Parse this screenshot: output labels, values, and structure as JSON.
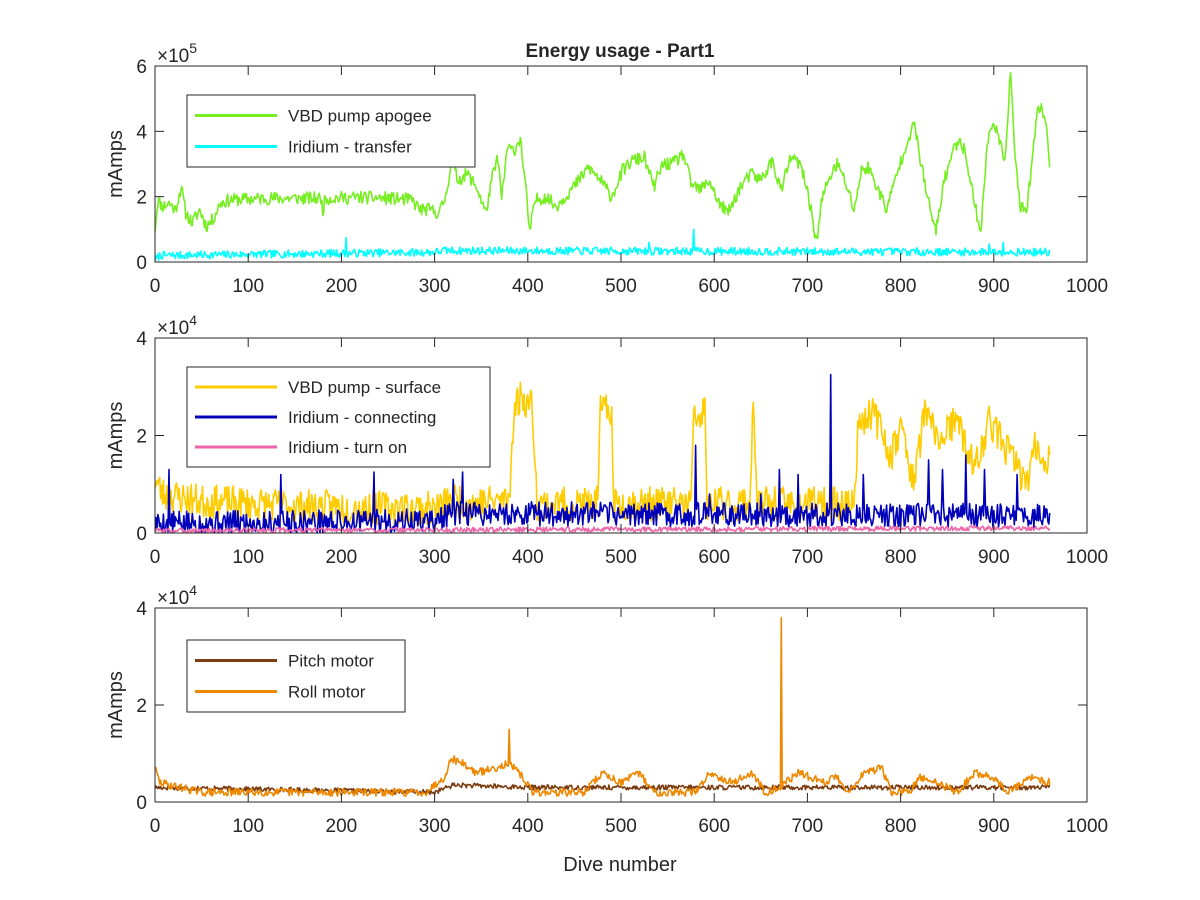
{
  "figure": {
    "title": "Energy usage - Part1",
    "xlabel": "Dive number"
  },
  "chart_data": [
    {
      "type": "line",
      "title": "Energy usage - Part1",
      "xlabel": "",
      "ylabel": "mAmps",
      "xlim": [
        0,
        1000
      ],
      "ylim": [
        0,
        6
      ],
      "y_exponent": "5",
      "xticks": [
        0,
        100,
        200,
        300,
        400,
        500,
        600,
        700,
        800,
        900,
        1000
      ],
      "yticks": [
        0,
        2,
        4,
        6
      ],
      "grid": false,
      "legend": "top-left",
      "series": [
        {
          "name": "VBD pump apogee",
          "color": "#77ee22",
          "points": [
            [
              0,
              1.0
            ],
            [
              3,
              1.9
            ],
            [
              8,
              1.7
            ],
            [
              15,
              1.8
            ],
            [
              22,
              1.6
            ],
            [
              28,
              2.3
            ],
            [
              33,
              1.5
            ],
            [
              40,
              1.2
            ],
            [
              48,
              1.6
            ],
            [
              55,
              1.1
            ],
            [
              62,
              1.3
            ],
            [
              70,
              1.8
            ],
            [
              80,
              1.9
            ],
            [
              120,
              1.95
            ],
            [
              160,
              1.95
            ],
            [
              178,
              1.95
            ],
            [
              180,
              1.6
            ],
            [
              183,
              1.95
            ],
            [
              220,
              1.98
            ],
            [
              250,
              1.95
            ],
            [
              275,
              1.9
            ],
            [
              285,
              1.6
            ],
            [
              295,
              1.6
            ],
            [
              305,
              1.5
            ],
            [
              312,
              2.0
            ],
            [
              318,
              3.1
            ],
            [
              325,
              2.5
            ],
            [
              335,
              2.7
            ],
            [
              345,
              2.3
            ],
            [
              355,
              1.5
            ],
            [
              362,
              2.6
            ],
            [
              368,
              3.2
            ],
            [
              372,
              1.9
            ],
            [
              378,
              3.5
            ],
            [
              385,
              3.4
            ],
            [
              392,
              3.8
            ],
            [
              398,
              2.2
            ],
            [
              402,
              0.9
            ],
            [
              408,
              1.9
            ],
            [
              420,
              2.0
            ],
            [
              430,
              1.7
            ],
            [
              440,
              2.0
            ],
            [
              455,
              2.5
            ],
            [
              465,
              2.9
            ],
            [
              478,
              2.5
            ],
            [
              490,
              2.0
            ],
            [
              502,
              2.8
            ],
            [
              512,
              3.1
            ],
            [
              525,
              3.2
            ],
            [
              535,
              2.3
            ],
            [
              545,
              3.0
            ],
            [
              555,
              3.0
            ],
            [
              567,
              3.3
            ],
            [
              575,
              2.4
            ],
            [
              585,
              2.2
            ],
            [
              595,
              2.5
            ],
            [
              605,
              1.8
            ],
            [
              615,
              1.5
            ],
            [
              628,
              2.3
            ],
            [
              640,
              2.7
            ],
            [
              650,
              2.5
            ],
            [
              662,
              3.1
            ],
            [
              672,
              2.2
            ],
            [
              682,
              3.2
            ],
            [
              692,
              3.0
            ],
            [
              700,
              2.2
            ],
            [
              710,
              0.6
            ],
            [
              715,
              1.8
            ],
            [
              722,
              2.5
            ],
            [
              732,
              3.0
            ],
            [
              740,
              2.5
            ],
            [
              750,
              1.6
            ],
            [
              758,
              2.8
            ],
            [
              765,
              2.9
            ],
            [
              775,
              2.3
            ],
            [
              785,
              1.6
            ],
            [
              795,
              2.6
            ],
            [
              808,
              3.8
            ],
            [
              815,
              4.2
            ],
            [
              822,
              3.0
            ],
            [
              830,
              1.8
            ],
            [
              838,
              0.9
            ],
            [
              846,
              2.4
            ],
            [
              855,
              3.3
            ],
            [
              863,
              3.8
            ],
            [
              870,
              3.3
            ],
            [
              878,
              2.0
            ],
            [
              886,
              0.9
            ],
            [
              893,
              3.6
            ],
            [
              900,
              4.4
            ],
            [
              906,
              3.6
            ],
            [
              912,
              3.2
            ],
            [
              918,
              5.8
            ],
            [
              922,
              3.6
            ],
            [
              928,
              1.7
            ],
            [
              935,
              1.5
            ],
            [
              942,
              3.3
            ],
            [
              948,
              4.8
            ],
            [
              955,
              4.5
            ],
            [
              960,
              3.0
            ]
          ],
          "noise": 0.2,
          "seed": 11
        },
        {
          "name": "Iridium - transfer",
          "color": "#00ffff",
          "points": [
            [
              0,
              0.05
            ],
            [
              5,
              0.2
            ],
            [
              300,
              0.3
            ],
            [
              310,
              0.35
            ],
            [
              960,
              0.3
            ]
          ],
          "noise": 0.12,
          "spikes": [
            [
              205,
              0.75
            ],
            [
              530,
              0.6
            ],
            [
              578,
              1.0
            ],
            [
              910,
              0.6
            ],
            [
              895,
              0.55
            ]
          ],
          "seed": 7
        }
      ]
    },
    {
      "type": "line",
      "title": "",
      "xlabel": "",
      "ylabel": "mAmps",
      "xlim": [
        0,
        1000
      ],
      "ylim": [
        0,
        4
      ],
      "y_exponent": "4",
      "xticks": [
        0,
        100,
        200,
        300,
        400,
        500,
        600,
        700,
        800,
        900,
        1000
      ],
      "yticks": [
        0,
        2,
        4
      ],
      "grid": false,
      "legend": "top-left",
      "series": [
        {
          "name": "VBD pump - surface",
          "color": "#ffcc00",
          "points": [
            [
              0,
              1.1
            ],
            [
              8,
              0.8
            ],
            [
              50,
              0.65
            ],
            [
              150,
              0.55
            ],
            [
              300,
              0.5
            ],
            [
              320,
              0.7
            ],
            [
              340,
              0.6
            ],
            [
              380,
              0.7
            ],
            [
              385,
              2.5
            ],
            [
              392,
              2.8
            ],
            [
              405,
              2.6
            ],
            [
              410,
              0.6
            ],
            [
              475,
              0.6
            ],
            [
              478,
              2.5
            ],
            [
              490,
              2.5
            ],
            [
              492,
              0.6
            ],
            [
              575,
              0.6
            ],
            [
              578,
              2.3
            ],
            [
              590,
              2.5
            ],
            [
              592,
              0.6
            ],
            [
              638,
              0.6
            ],
            [
              642,
              2.8
            ],
            [
              646,
              0.6
            ],
            [
              750,
              0.6
            ],
            [
              755,
              2.3
            ],
            [
              770,
              2.5
            ],
            [
              790,
              1.6
            ],
            [
              800,
              2.2
            ],
            [
              815,
              1.0
            ],
            [
              825,
              2.5
            ],
            [
              840,
              1.9
            ],
            [
              860,
              2.3
            ],
            [
              880,
              1.3
            ],
            [
              895,
              2.3
            ],
            [
              915,
              1.7
            ],
            [
              935,
              1.0
            ],
            [
              945,
              1.8
            ],
            [
              955,
              1.5
            ],
            [
              960,
              1.6
            ]
          ],
          "noise": 0.35,
          "seed": 23
        },
        {
          "name": "Iridium - connecting",
          "color": "#0000bb",
          "points": [
            [
              0,
              0.2
            ],
            [
              300,
              0.25
            ],
            [
              320,
              0.4
            ],
            [
              960,
              0.35
            ]
          ],
          "noise": 0.25,
          "spikes": [
            [
              15,
              1.3
            ],
            [
              135,
              1.2
            ],
            [
              235,
              1.25
            ],
            [
              320,
              1.1
            ],
            [
              330,
              1.25
            ],
            [
              580,
              1.8
            ],
            [
              595,
              0.8
            ],
            [
              650,
              0.8
            ],
            [
              670,
              1.3
            ],
            [
              690,
              1.2
            ],
            [
              725,
              3.25
            ],
            [
              760,
              1.2
            ],
            [
              830,
              1.5
            ],
            [
              845,
              1.3
            ],
            [
              870,
              1.6
            ],
            [
              890,
              1.3
            ],
            [
              925,
              1.2
            ]
          ],
          "seed": 5
        },
        {
          "name": "Iridium - turn on",
          "color": "#ee66aa",
          "points": [
            [
              0,
              0.05
            ],
            [
              960,
              0.1
            ]
          ],
          "noise": 0.05,
          "seed": 3
        }
      ]
    },
    {
      "type": "line",
      "title": "",
      "xlabel": "Dive number",
      "ylabel": "mAmps",
      "xlim": [
        0,
        1000
      ],
      "ylim": [
        0,
        4
      ],
      "y_exponent": "4",
      "xticks": [
        0,
        100,
        200,
        300,
        400,
        500,
        600,
        700,
        800,
        900,
        1000
      ],
      "yticks": [
        0,
        2,
        4
      ],
      "grid": false,
      "legend": "top-left",
      "series": [
        {
          "name": "Pitch motor",
          "color": "#7a3c10",
          "points": [
            [
              0,
              0.3
            ],
            [
              300,
              0.2
            ],
            [
              320,
              0.35
            ],
            [
              400,
              0.3
            ],
            [
              960,
              0.3
            ]
          ],
          "noise": 0.05,
          "seed": 17
        },
        {
          "name": "Roll motor",
          "color": "#ee8800",
          "points": [
            [
              0,
              0.7
            ],
            [
              5,
              0.4
            ],
            [
              50,
              0.2
            ],
            [
              290,
              0.2
            ],
            [
              310,
              0.5
            ],
            [
              318,
              0.9
            ],
            [
              330,
              0.8
            ],
            [
              345,
              0.6
            ],
            [
              365,
              0.7
            ],
            [
              378,
              0.8
            ],
            [
              385,
              0.7
            ],
            [
              395,
              0.5
            ],
            [
              405,
              0.2
            ],
            [
              460,
              0.2
            ],
            [
              480,
              0.6
            ],
            [
              500,
              0.4
            ],
            [
              520,
              0.6
            ],
            [
              535,
              0.2
            ],
            [
              580,
              0.2
            ],
            [
              595,
              0.6
            ],
            [
              620,
              0.4
            ],
            [
              640,
              0.6
            ],
            [
              655,
              0.2
            ],
            [
              670,
              0.3
            ],
            [
              690,
              0.6
            ],
            [
              720,
              0.4
            ],
            [
              730,
              0.55
            ],
            [
              745,
              0.2
            ],
            [
              760,
              0.6
            ],
            [
              780,
              0.7
            ],
            [
              790,
              0.2
            ],
            [
              810,
              0.2
            ],
            [
              820,
              0.5
            ],
            [
              840,
              0.4
            ],
            [
              860,
              0.2
            ],
            [
              880,
              0.6
            ],
            [
              900,
              0.5
            ],
            [
              915,
              0.2
            ],
            [
              940,
              0.5
            ],
            [
              960,
              0.4
            ]
          ],
          "noise": 0.08,
          "spikes": [
            [
              380,
              1.5
            ],
            [
              672,
              3.8
            ]
          ],
          "seed": 29
        }
      ]
    }
  ]
}
